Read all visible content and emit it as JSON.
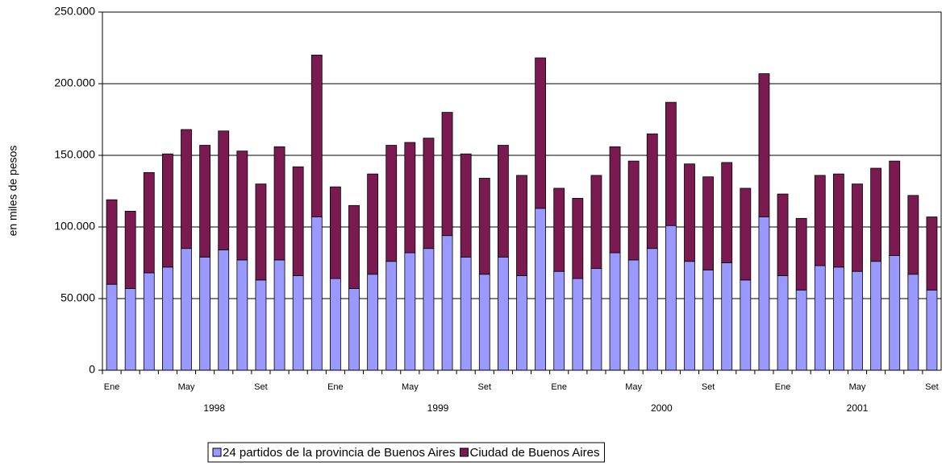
{
  "chart_data": {
    "type": "stacked-bar",
    "y_label": "en miles de pesos",
    "categories": [
      "Ene",
      null,
      null,
      null,
      "May",
      null,
      null,
      null,
      "Set",
      null,
      null,
      null,
      "Ene",
      null,
      null,
      null,
      "May",
      null,
      null,
      null,
      "Set",
      null,
      null,
      null,
      "Ene",
      null,
      null,
      null,
      "May",
      null,
      null,
      null,
      "Set",
      null,
      null,
      null,
      "Ene",
      null,
      null,
      null,
      "May",
      null,
      null,
      null,
      "Set"
    ],
    "groups": [
      {
        "name": "1998",
        "size": 12
      },
      {
        "name": "1999",
        "size": 12
      },
      {
        "name": "2000",
        "size": 12
      },
      {
        "name": "2001",
        "size": 9
      }
    ],
    "series": [
      {
        "name": "24 partidos de la provincia de Buenos Aires",
        "color": "#9999ff",
        "values": [
          60000,
          57000,
          68000,
          72000,
          85000,
          79000,
          84000,
          77000,
          63000,
          77000,
          66000,
          107000,
          64000,
          57000,
          67000,
          76000,
          82000,
          85000,
          94000,
          79000,
          67000,
          79000,
          66000,
          113000,
          69000,
          64000,
          71000,
          82000,
          77000,
          85000,
          101000,
          76000,
          70000,
          75000,
          63000,
          107000,
          66000,
          56000,
          73000,
          72000,
          69000,
          76000,
          80000,
          67000,
          56000
        ]
      },
      {
        "name": "Ciudad de Buenos Aires",
        "color": "#7a1a50",
        "values": [
          59000,
          54000,
          70000,
          79000,
          83000,
          78000,
          83000,
          76000,
          67000,
          79000,
          76000,
          113000,
          64000,
          58000,
          70000,
          81000,
          77000,
          77000,
          86000,
          72000,
          67000,
          78000,
          70000,
          105000,
          58000,
          56000,
          65000,
          74000,
          69000,
          80000,
          86000,
          68000,
          65000,
          70000,
          64000,
          100000,
          57000,
          50000,
          63000,
          65000,
          61000,
          65000,
          66000,
          55000,
          51000
        ]
      }
    ],
    "ylim": [
      0,
      250000
    ],
    "yticks": [
      0,
      {
        "value": 50000,
        "label": "50.000"
      },
      {
        "value": 100000,
        "label": "100.000"
      },
      {
        "value": 150000,
        "label": "150.000"
      },
      {
        "value": 200000,
        "label": "200.000"
      },
      {
        "value": 250000,
        "label": "250.000"
      }
    ],
    "grid": true,
    "legend": "bottom"
  }
}
